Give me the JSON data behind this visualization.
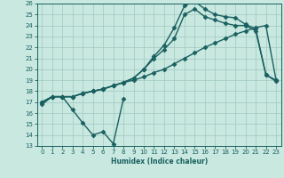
{
  "xlabel": "Humidex (Indice chaleur)",
  "xlim": [
    -0.5,
    23.5
  ],
  "ylim": [
    13,
    26
  ],
  "yticks": [
    13,
    14,
    15,
    16,
    17,
    18,
    19,
    20,
    21,
    22,
    23,
    24,
    25,
    26
  ],
  "xticks": [
    0,
    1,
    2,
    3,
    4,
    5,
    6,
    7,
    8,
    9,
    10,
    11,
    12,
    13,
    14,
    15,
    16,
    17,
    18,
    19,
    20,
    21,
    22,
    23
  ],
  "background_color": "#c8e8e0",
  "grid_color": "#a0c8c0",
  "line_color": "#1a6060",
  "line1_x": [
    0,
    1,
    2,
    3,
    4,
    5,
    6,
    7,
    8
  ],
  "line1_y": [
    16.8,
    17.5,
    17.5,
    16.3,
    15.1,
    14.0,
    14.3,
    13.2,
    17.3
  ],
  "line2_x": [
    0,
    1,
    2,
    3,
    4,
    5,
    6,
    7,
    8,
    9,
    10,
    11,
    12,
    13,
    14,
    15,
    16,
    17,
    18,
    19,
    20,
    21,
    22,
    23
  ],
  "line2_y": [
    17.0,
    17.5,
    17.5,
    17.5,
    17.8,
    18.0,
    18.2,
    18.5,
    18.8,
    19.0,
    19.3,
    19.7,
    20.0,
    20.5,
    21.0,
    21.5,
    22.0,
    22.4,
    22.8,
    23.2,
    23.5,
    23.8,
    24.0,
    19.0
  ],
  "line3_x": [
    0,
    1,
    2,
    3,
    4,
    5,
    6,
    7,
    8,
    9,
    10,
    11,
    12,
    13,
    14,
    15,
    16,
    17,
    18,
    19,
    20,
    21,
    22,
    23
  ],
  "line3_y": [
    17.0,
    17.5,
    17.5,
    17.5,
    17.8,
    18.0,
    18.2,
    18.5,
    18.8,
    19.2,
    20.0,
    21.0,
    21.8,
    22.8,
    25.0,
    25.5,
    24.8,
    24.5,
    24.2,
    24.0,
    24.0,
    23.5,
    19.5,
    19.0
  ],
  "line4_x": [
    0,
    1,
    2,
    3,
    4,
    5,
    6,
    7,
    8,
    9,
    10,
    11,
    12,
    13,
    14,
    15,
    16,
    17,
    18,
    19,
    20,
    21,
    22,
    23
  ],
  "line4_y": [
    17.0,
    17.5,
    17.5,
    17.5,
    17.8,
    18.0,
    18.2,
    18.5,
    18.8,
    19.2,
    20.0,
    21.2,
    22.2,
    23.8,
    25.8,
    26.2,
    25.5,
    25.0,
    24.8,
    24.7,
    24.1,
    23.7,
    19.5,
    18.9
  ],
  "marker": "D",
  "markersize": 2.5,
  "linewidth": 1.0
}
